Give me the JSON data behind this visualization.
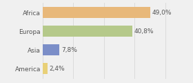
{
  "categories": [
    "Africa",
    "Europa",
    "Asia",
    "America"
  ],
  "values": [
    49.0,
    40.8,
    7.8,
    2.4
  ],
  "labels": [
    "49,0%",
    "40,8%",
    "7,8%",
    "2,4%"
  ],
  "colors": [
    "#e8b87a",
    "#b5c98a",
    "#7b8ec8",
    "#e8d078"
  ],
  "background_color": "#f0f0f0",
  "xlim": [
    0,
    58
  ],
  "bar_height": 0.6,
  "label_fontsize": 6.5,
  "tick_fontsize": 6.5,
  "grid_color": "#d8d8d8",
  "text_color": "#555555"
}
